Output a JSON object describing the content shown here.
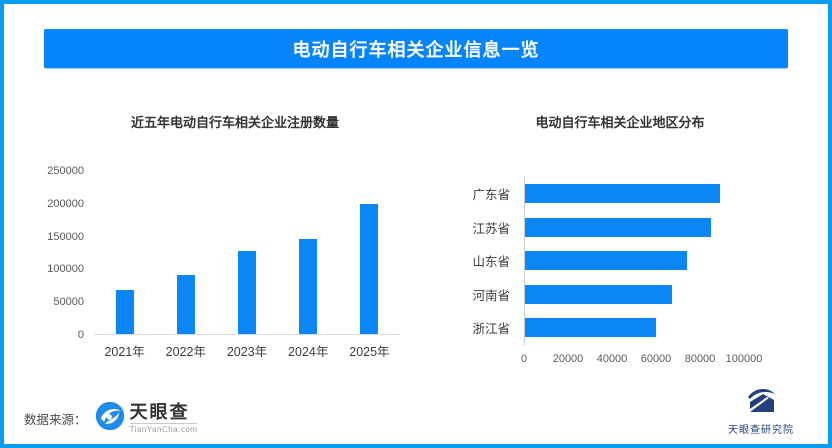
{
  "banner": {
    "title": "电动自行车相关企业信息一览"
  },
  "colors": {
    "accent": "#0584fb",
    "border": "#0a9ef3",
    "bar": "#0a86f6"
  },
  "chart_data": [
    {
      "type": "bar",
      "orientation": "vertical",
      "title": "近五年电动自行车相关企业注册数量",
      "categories": [
        "2021年",
        "2022年",
        "2023年",
        "2024年",
        "2025年"
      ],
      "values": [
        68000,
        91000,
        128000,
        145000,
        200000
      ],
      "ylabel": "",
      "xlabel": "",
      "ylim": [
        0,
        250000
      ],
      "yticks": [
        0,
        50000,
        100000,
        150000,
        200000,
        250000
      ],
      "grid": false,
      "legend": false
    },
    {
      "type": "bar",
      "orientation": "horizontal",
      "title": "电动自行车相关企业地区分布",
      "categories": [
        "广东省",
        "江苏省",
        "山东省",
        "河南省",
        "浙江省"
      ],
      "values": [
        89000,
        85000,
        74000,
        67000,
        60000
      ],
      "ylabel": "",
      "xlabel": "",
      "xlim": [
        0,
        100000
      ],
      "xticks": [
        0,
        20000,
        40000,
        60000,
        80000,
        100000
      ],
      "grid": false,
      "legend": false
    }
  ],
  "footer": {
    "source_label": "数据来源：",
    "tianyancha_name": "天眼查",
    "tianyancha_sub": "TianYanCha.com",
    "institute": "天眼查研究院",
    "icons": [
      "tianyancha-eye-icon",
      "institute-mountain-icon"
    ]
  }
}
